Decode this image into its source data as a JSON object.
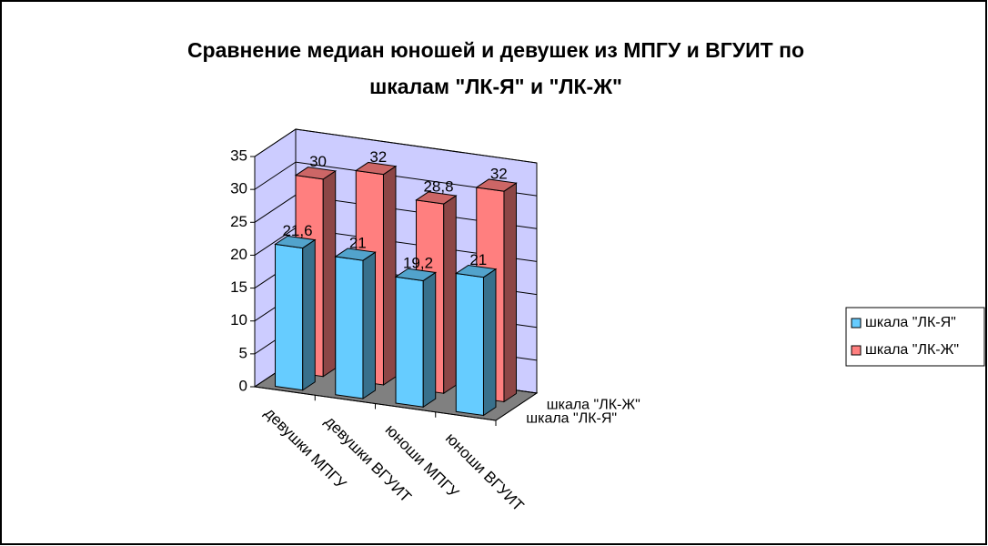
{
  "chart_data": {
    "type": "bar3d",
    "title": "Сравнение медиан юношей и девушек из МПГУ и ВГУИТ по шкалам \"ЛК-Я\" и \"ЛК-Ж\"",
    "categories": [
      "девушки МПГУ",
      "девушки ВГУИТ",
      "юноши МПГУ",
      "юноши ВГУИТ"
    ],
    "series": [
      {
        "name": "шкала \"ЛК-Я\"",
        "color": "#66ccff",
        "values": [
          21.6,
          21,
          19.2,
          21
        ],
        "value_labels": [
          "21,6",
          "21",
          "19,2",
          "21"
        ]
      },
      {
        "name": "шкала \"ЛК-Ж\"",
        "color": "#ff7f7f",
        "values": [
          30,
          32,
          28.8,
          32
        ],
        "value_labels": [
          "30",
          "32",
          "28,8",
          "32"
        ]
      }
    ],
    "ylim": [
      0,
      35
    ],
    "yticks": [
      0,
      5,
      10,
      15,
      20,
      25,
      30,
      35
    ],
    "grid": true,
    "legend": "right",
    "wall_color": "#ccccff",
    "floor_color": "#808080"
  }
}
